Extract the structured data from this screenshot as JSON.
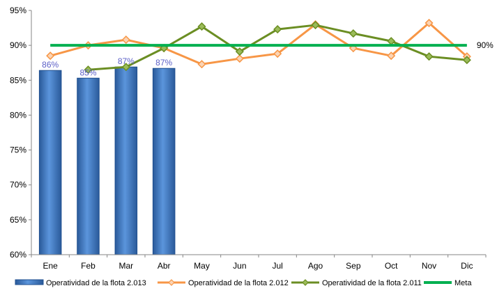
{
  "chart_data": {
    "type": "bar",
    "categories": [
      "Ene",
      "Feb",
      "Mar",
      "Abr",
      "May",
      "Jun",
      "Jul",
      "Ago",
      "Sep",
      "Oct",
      "Nov",
      "Dic"
    ],
    "y_ticks": [
      "60%",
      "65%",
      "70%",
      "75%",
      "80%",
      "85%",
      "90%",
      "95%"
    ],
    "ylim": [
      60,
      95
    ],
    "series": [
      {
        "name": "Operatividad de la flota 2.013",
        "kind": "bar",
        "color": "#3a78c8",
        "values": [
          86.4,
          85.3,
          86.9,
          86.7,
          null,
          null,
          null,
          null,
          null,
          null,
          null,
          null
        ],
        "data_labels": [
          "86%",
          "85%",
          "87%",
          "87%"
        ]
      },
      {
        "name": "Operatividad de la flota 2.012",
        "kind": "line",
        "color": "#f79646",
        "marker": "diamond",
        "values": [
          88.5,
          90.0,
          90.8,
          89.6,
          87.3,
          88.1,
          88.8,
          93.0,
          89.6,
          88.5,
          93.2,
          88.4
        ]
      },
      {
        "name": "Operatividad de la flota 2.011",
        "kind": "line",
        "color": "#6b8e23",
        "marker": "diamond",
        "values": [
          null,
          86.5,
          86.9,
          89.6,
          92.7,
          89.1,
          92.3,
          92.9,
          91.7,
          90.6,
          88.4,
          87.9
        ]
      },
      {
        "name": "Meta",
        "kind": "line",
        "color": "#00b050",
        "marker": "none",
        "values": [
          90,
          90,
          90,
          90,
          90,
          90,
          90,
          90,
          90,
          90,
          90,
          90
        ],
        "end_label": "90%"
      }
    ],
    "legend_position": "bottom",
    "grid": false
  }
}
